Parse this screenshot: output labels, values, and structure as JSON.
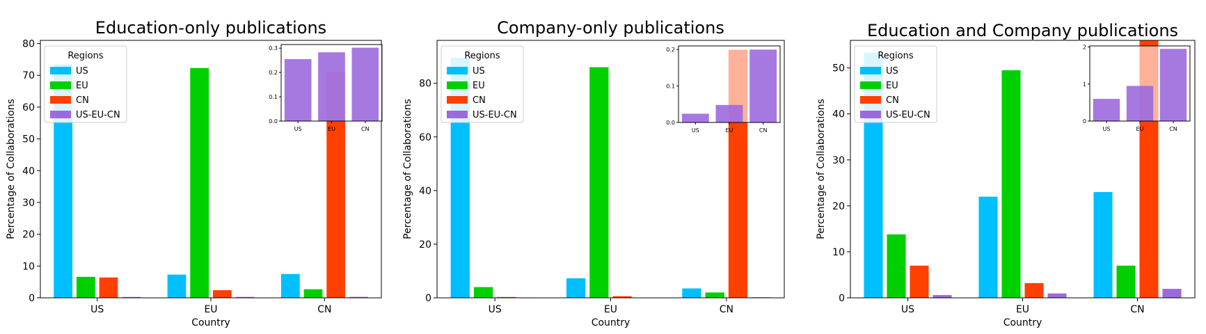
{
  "colors": {
    "US": "#00bfff",
    "EU": "#00d000",
    "CN": "#ff4000",
    "US-EU-CN": "#9c6ade",
    "text": "#000000",
    "background": "#ffffff"
  },
  "chart_data": [
    {
      "type": "bar",
      "title": "Education-only publications",
      "xlabel": "Country",
      "ylabel": "Percentage of Collaborations",
      "categories": [
        "US",
        "EU",
        "CN"
      ],
      "ylim": [
        0,
        81
      ],
      "yticks": [
        0,
        10,
        20,
        30,
        40,
        50,
        60,
        70,
        80
      ],
      "legend": {
        "title": "Regions",
        "placement": "upper-left"
      },
      "series": [
        {
          "name": "US",
          "values": [
            73.5,
            7.3,
            7.5
          ]
        },
        {
          "name": "EU",
          "values": [
            6.6,
            72.3,
            2.7
          ]
        },
        {
          "name": "CN",
          "values": [
            6.4,
            2.4,
            71.0
          ]
        },
        {
          "name": "US-EU-CN",
          "values": [
            0.26,
            0.28,
            0.3
          ]
        }
      ],
      "inset": {
        "type": "bar",
        "placement": "upper-right",
        "categories": [
          "US",
          "EU",
          "CN"
        ],
        "values": [
          0.255,
          0.283,
          0.302
        ],
        "ylim": [
          0,
          0.315
        ],
        "yticks": [
          "0.0",
          "0.1",
          "0.2",
          "0.3"
        ]
      }
    },
    {
      "type": "bar",
      "title": "Company-only publications",
      "xlabel": "Country",
      "ylabel": "Percentage of Collaborations",
      "categories": [
        "US",
        "EU",
        "CN"
      ],
      "ylim": [
        0,
        96
      ],
      "yticks": [
        0,
        20,
        40,
        60,
        80
      ],
      "legend": {
        "title": "Regions",
        "placement": "upper-left"
      },
      "series": [
        {
          "name": "US",
          "values": [
            89.5,
            7.3,
            3.5
          ]
        },
        {
          "name": "EU",
          "values": [
            4.0,
            86.0,
            2.0
          ]
        },
        {
          "name": "CN",
          "values": [
            0.3,
            0.6,
            92.5
          ]
        },
        {
          "name": "US-EU-CN",
          "values": [
            0.02,
            0.05,
            0.2
          ]
        }
      ],
      "inset": {
        "type": "bar",
        "placement": "upper-right",
        "categories": [
          "US",
          "EU",
          "CN"
        ],
        "values": [
          0.024,
          0.048,
          0.2
        ],
        "ylim": [
          0,
          0.21
        ],
        "yticks": [
          "0.0",
          "0.1",
          "0.2"
        ]
      }
    },
    {
      "type": "bar",
      "title": "Education and Company publications",
      "xlabel": "Country",
      "ylabel": "Percentage of Collaborations",
      "categories": [
        "US",
        "EU",
        "CN"
      ],
      "ylim": [
        0,
        56
      ],
      "yticks": [
        0,
        10,
        20,
        30,
        40,
        50
      ],
      "legend": {
        "title": "Regions",
        "placement": "upper-left"
      },
      "series": [
        {
          "name": "US",
          "values": [
            53.3,
            22.0,
            23.0
          ]
        },
        {
          "name": "EU",
          "values": [
            13.8,
            49.5,
            7.0
          ]
        },
        {
          "name": "CN",
          "values": [
            7.0,
            3.2,
            61.0
          ]
        },
        {
          "name": "US-EU-CN",
          "values": [
            0.6,
            0.95,
            1.95
          ]
        }
      ],
      "inset": {
        "type": "bar",
        "placement": "upper-right",
        "categories": [
          "US",
          "EU",
          "CN"
        ],
        "values": [
          0.6,
          0.95,
          1.95
        ],
        "ylim": [
          0,
          2.03
        ],
        "yticks": [
          "0",
          "1",
          "2"
        ]
      }
    }
  ]
}
